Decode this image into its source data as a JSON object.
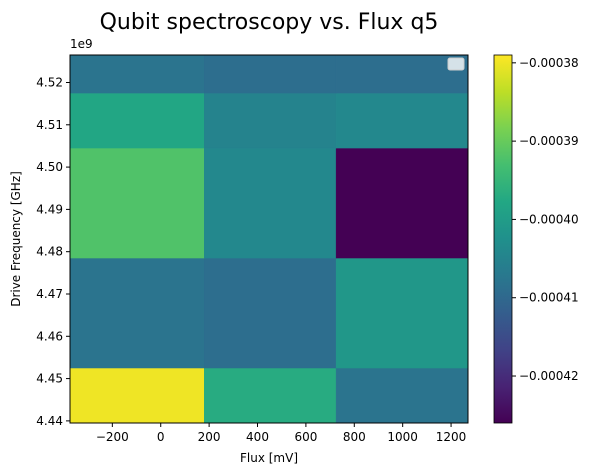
{
  "chart_data": {
    "type": "heatmap",
    "title": "Qubit spectroscopy vs. Flux q5",
    "xlabel": "Flux [mV]",
    "ylabel": "Drive Frequency [GHz]",
    "y_offset_label": "1e9",
    "x_edges": [
      -375,
      180,
      725,
      1270
    ],
    "y_edges": [
      4.4395,
      4.4525,
      4.4655,
      4.4785,
      4.4915,
      4.5045,
      4.5175,
      4.5265
    ],
    "xlim": [
      -375,
      1270
    ],
    "ylim": [
      4.4395,
      4.5265
    ],
    "x_ticks": [
      -200,
      0,
      200,
      400,
      600,
      800,
      1000,
      1200
    ],
    "x_tick_labels": [
      "−200",
      "0",
      "200",
      "400",
      "600",
      "800",
      "1000",
      "1200"
    ],
    "y_ticks": [
      4.44,
      4.45,
      4.46,
      4.47,
      4.48,
      4.49,
      4.5,
      4.51,
      4.52
    ],
    "y_tick_labels": [
      "4.44",
      "4.45",
      "4.46",
      "4.47",
      "4.48",
      "4.49",
      "4.50",
      "4.51",
      "4.52"
    ],
    "values": [
      [
        -0.00038,
        -0.000397,
        -0.000408
      ],
      [
        -0.000408,
        -0.000409,
        -0.000401
      ],
      [
        -0.000392,
        -0.000404,
        -0.000426
      ],
      [
        -0.000398,
        -0.000405,
        -0.000404
      ],
      [
        -0.000408,
        -0.000409,
        -0.000409
      ]
    ],
    "row_spans": [
      [
        0,
        1
      ],
      [
        1,
        3
      ],
      [
        3,
        5
      ],
      [
        5,
        6
      ],
      [
        6,
        7
      ]
    ],
    "colorbar": {
      "min": -0.000426,
      "max": -0.000379,
      "ticks": [
        -0.00038,
        -0.00039,
        -0.0004,
        -0.00041,
        -0.00042
      ],
      "tick_labels": [
        "−0.00038",
        "−0.00039",
        "−0.00040",
        "−0.00041",
        "−0.00042"
      ],
      "colormap": "viridis"
    },
    "legend_position": "upper right",
    "legend_entries": [],
    "grid": false
  }
}
